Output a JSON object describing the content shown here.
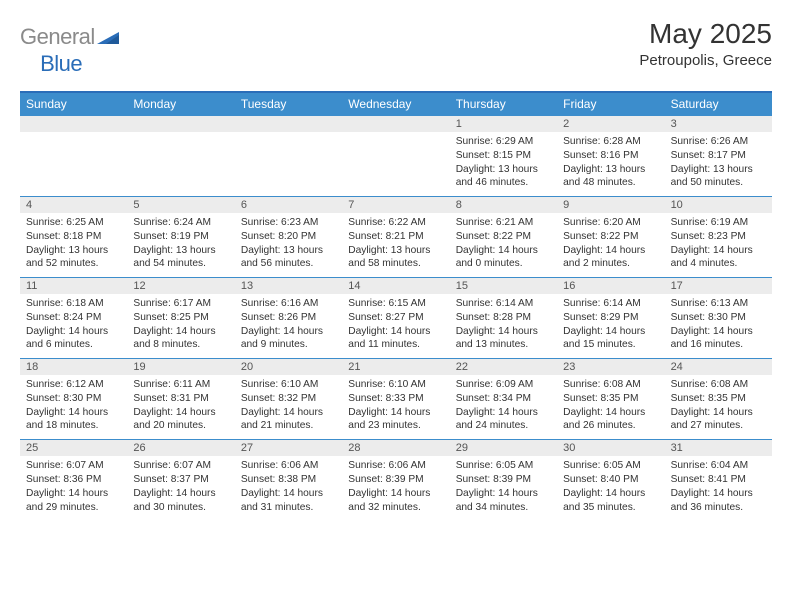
{
  "brand": {
    "text_gray": "General",
    "text_blue": "Blue"
  },
  "title": {
    "month": "May 2025",
    "location": "Petroupolis, Greece"
  },
  "colors": {
    "header_bg": "#3c8dcc",
    "header_text": "#ffffff",
    "date_bg": "#ececec",
    "border": "#3c8dcc",
    "top_border": "#2a6db8",
    "brand_gray": "#8a8a8a",
    "brand_blue": "#2a6db8"
  },
  "grid": {
    "columns": 7,
    "day_names": [
      "Sunday",
      "Monday",
      "Tuesday",
      "Wednesday",
      "Thursday",
      "Friday",
      "Saturday"
    ],
    "weeks": [
      [
        {
          "date": "",
          "lines": []
        },
        {
          "date": "",
          "lines": []
        },
        {
          "date": "",
          "lines": []
        },
        {
          "date": "",
          "lines": []
        },
        {
          "date": "1",
          "lines": [
            "Sunrise: 6:29 AM",
            "Sunset: 8:15 PM",
            "Daylight: 13 hours and 46 minutes."
          ]
        },
        {
          "date": "2",
          "lines": [
            "Sunrise: 6:28 AM",
            "Sunset: 8:16 PM",
            "Daylight: 13 hours and 48 minutes."
          ]
        },
        {
          "date": "3",
          "lines": [
            "Sunrise: 6:26 AM",
            "Sunset: 8:17 PM",
            "Daylight: 13 hours and 50 minutes."
          ]
        }
      ],
      [
        {
          "date": "4",
          "lines": [
            "Sunrise: 6:25 AM",
            "Sunset: 8:18 PM",
            "Daylight: 13 hours and 52 minutes."
          ]
        },
        {
          "date": "5",
          "lines": [
            "Sunrise: 6:24 AM",
            "Sunset: 8:19 PM",
            "Daylight: 13 hours and 54 minutes."
          ]
        },
        {
          "date": "6",
          "lines": [
            "Sunrise: 6:23 AM",
            "Sunset: 8:20 PM",
            "Daylight: 13 hours and 56 minutes."
          ]
        },
        {
          "date": "7",
          "lines": [
            "Sunrise: 6:22 AM",
            "Sunset: 8:21 PM",
            "Daylight: 13 hours and 58 minutes."
          ]
        },
        {
          "date": "8",
          "lines": [
            "Sunrise: 6:21 AM",
            "Sunset: 8:22 PM",
            "Daylight: 14 hours and 0 minutes."
          ]
        },
        {
          "date": "9",
          "lines": [
            "Sunrise: 6:20 AM",
            "Sunset: 8:22 PM",
            "Daylight: 14 hours and 2 minutes."
          ]
        },
        {
          "date": "10",
          "lines": [
            "Sunrise: 6:19 AM",
            "Sunset: 8:23 PM",
            "Daylight: 14 hours and 4 minutes."
          ]
        }
      ],
      [
        {
          "date": "11",
          "lines": [
            "Sunrise: 6:18 AM",
            "Sunset: 8:24 PM",
            "Daylight: 14 hours and 6 minutes."
          ]
        },
        {
          "date": "12",
          "lines": [
            "Sunrise: 6:17 AM",
            "Sunset: 8:25 PM",
            "Daylight: 14 hours and 8 minutes."
          ]
        },
        {
          "date": "13",
          "lines": [
            "Sunrise: 6:16 AM",
            "Sunset: 8:26 PM",
            "Daylight: 14 hours and 9 minutes."
          ]
        },
        {
          "date": "14",
          "lines": [
            "Sunrise: 6:15 AM",
            "Sunset: 8:27 PM",
            "Daylight: 14 hours and 11 minutes."
          ]
        },
        {
          "date": "15",
          "lines": [
            "Sunrise: 6:14 AM",
            "Sunset: 8:28 PM",
            "Daylight: 14 hours and 13 minutes."
          ]
        },
        {
          "date": "16",
          "lines": [
            "Sunrise: 6:14 AM",
            "Sunset: 8:29 PM",
            "Daylight: 14 hours and 15 minutes."
          ]
        },
        {
          "date": "17",
          "lines": [
            "Sunrise: 6:13 AM",
            "Sunset: 8:30 PM",
            "Daylight: 14 hours and 16 minutes."
          ]
        }
      ],
      [
        {
          "date": "18",
          "lines": [
            "Sunrise: 6:12 AM",
            "Sunset: 8:30 PM",
            "Daylight: 14 hours and 18 minutes."
          ]
        },
        {
          "date": "19",
          "lines": [
            "Sunrise: 6:11 AM",
            "Sunset: 8:31 PM",
            "Daylight: 14 hours and 20 minutes."
          ]
        },
        {
          "date": "20",
          "lines": [
            "Sunrise: 6:10 AM",
            "Sunset: 8:32 PM",
            "Daylight: 14 hours and 21 minutes."
          ]
        },
        {
          "date": "21",
          "lines": [
            "Sunrise: 6:10 AM",
            "Sunset: 8:33 PM",
            "Daylight: 14 hours and 23 minutes."
          ]
        },
        {
          "date": "22",
          "lines": [
            "Sunrise: 6:09 AM",
            "Sunset: 8:34 PM",
            "Daylight: 14 hours and 24 minutes."
          ]
        },
        {
          "date": "23",
          "lines": [
            "Sunrise: 6:08 AM",
            "Sunset: 8:35 PM",
            "Daylight: 14 hours and 26 minutes."
          ]
        },
        {
          "date": "24",
          "lines": [
            "Sunrise: 6:08 AM",
            "Sunset: 8:35 PM",
            "Daylight: 14 hours and 27 minutes."
          ]
        }
      ],
      [
        {
          "date": "25",
          "lines": [
            "Sunrise: 6:07 AM",
            "Sunset: 8:36 PM",
            "Daylight: 14 hours and 29 minutes."
          ]
        },
        {
          "date": "26",
          "lines": [
            "Sunrise: 6:07 AM",
            "Sunset: 8:37 PM",
            "Daylight: 14 hours and 30 minutes."
          ]
        },
        {
          "date": "27",
          "lines": [
            "Sunrise: 6:06 AM",
            "Sunset: 8:38 PM",
            "Daylight: 14 hours and 31 minutes."
          ]
        },
        {
          "date": "28",
          "lines": [
            "Sunrise: 6:06 AM",
            "Sunset: 8:39 PM",
            "Daylight: 14 hours and 32 minutes."
          ]
        },
        {
          "date": "29",
          "lines": [
            "Sunrise: 6:05 AM",
            "Sunset: 8:39 PM",
            "Daylight: 14 hours and 34 minutes."
          ]
        },
        {
          "date": "30",
          "lines": [
            "Sunrise: 6:05 AM",
            "Sunset: 8:40 PM",
            "Daylight: 14 hours and 35 minutes."
          ]
        },
        {
          "date": "31",
          "lines": [
            "Sunrise: 6:04 AM",
            "Sunset: 8:41 PM",
            "Daylight: 14 hours and 36 minutes."
          ]
        }
      ]
    ]
  }
}
